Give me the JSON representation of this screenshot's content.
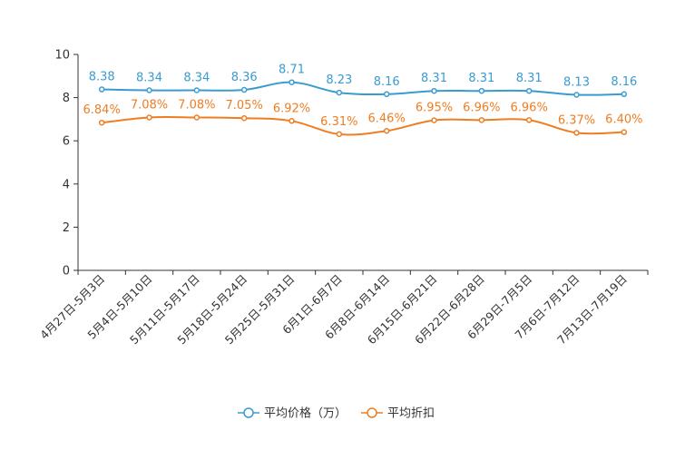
{
  "chart_data": {
    "type": "line",
    "categories": [
      "4月27日-5月3日",
      "5月4日-5月10日",
      "5月11日-5月17日",
      "5月18日-5月24日",
      "5月25日-5月31日",
      "6月1日-6月7日",
      "6月8日-6月14日",
      "6月15日-6月21日",
      "6月22日-6月28日",
      "6月29日-7月5日",
      "7月6日-7月12日",
      "7月13日-7月19日"
    ],
    "series": [
      {
        "name": "平均价格（万）",
        "color": "#3a9bd1",
        "values": [
          8.38,
          8.34,
          8.34,
          8.36,
          8.71,
          8.23,
          8.16,
          8.31,
          8.31,
          8.31,
          8.13,
          8.16
        ],
        "labels": [
          "8.38",
          "8.34",
          "8.34",
          "8.36",
          "8.71",
          "8.23",
          "8.16",
          "8.31",
          "8.31",
          "8.31",
          "8.13",
          "8.16"
        ]
      },
      {
        "name": "平均折扣",
        "color": "#ef7d22",
        "values": [
          6.84,
          7.08,
          7.08,
          7.05,
          6.92,
          6.31,
          6.46,
          6.95,
          6.96,
          6.96,
          6.37,
          6.4
        ],
        "labels": [
          "6.84%",
          "7.08%",
          "7.08%",
          "7.05%",
          "6.92%",
          "6.31%",
          "6.46%",
          "6.95%",
          "6.96%",
          "6.96%",
          "6.37%",
          "6.40%"
        ]
      }
    ],
    "yticks": [
      "0",
      "2",
      "4",
      "6",
      "8",
      "10"
    ],
    "ylim": [
      0,
      10
    ],
    "legend_position": "bottom-center",
    "grid": false
  }
}
